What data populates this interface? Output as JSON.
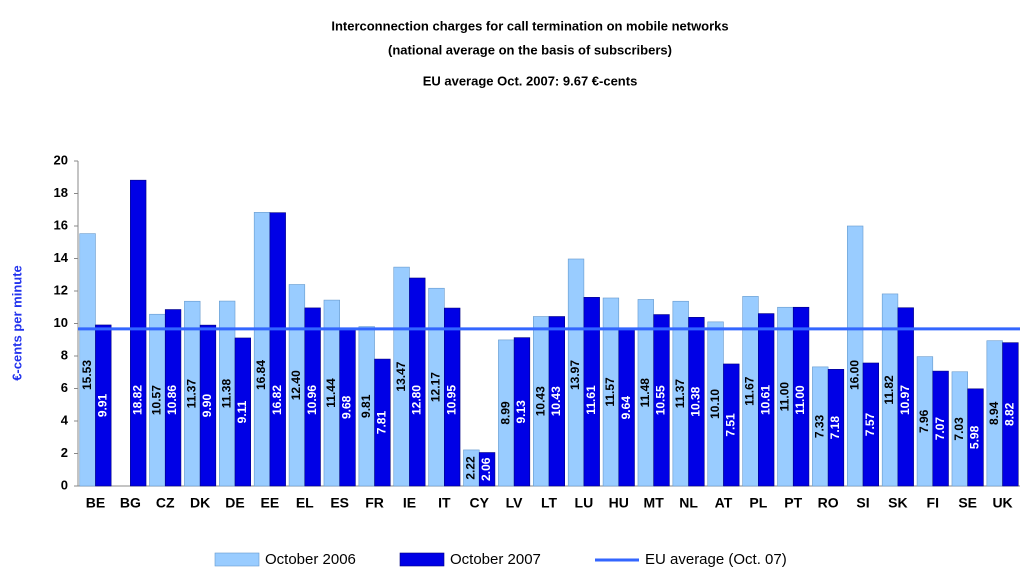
{
  "chart_data": {
    "type": "bar",
    "title": "Interconnection charges for call termination on mobile networks",
    "subtitle": "(national average on the basis of subscribers)",
    "annotation": "EU average Oct. 2007: 9.67 €-cents",
    "y_label": "€-cents per minute",
    "categories": [
      "BE",
      "BG",
      "CZ",
      "DK",
      "DE",
      "EE",
      "EL",
      "ES",
      "FR",
      "IE",
      "IT",
      "CY",
      "LV",
      "LT",
      "LU",
      "HU",
      "MT",
      "NL",
      "AT",
      "PL",
      "PT",
      "RO",
      "SI",
      "SK",
      "FI",
      "SE",
      "UK"
    ],
    "series": [
      {
        "name": "October 2006",
        "color": "#99ccff",
        "values": [
          15.53,
          null,
          10.57,
          11.37,
          11.38,
          16.84,
          12.4,
          11.44,
          9.81,
          13.47,
          12.17,
          2.22,
          8.99,
          10.43,
          13.97,
          11.57,
          11.48,
          11.37,
          10.1,
          11.67,
          11.0,
          7.33,
          16.0,
          11.82,
          7.96,
          7.03,
          8.94
        ],
        "value_labels": [
          "15.53",
          null,
          "10.57",
          "11.37",
          "11.38",
          "16.84",
          "12.40",
          "11.44",
          "9.81",
          "13.47",
          "12.17",
          "2.22",
          "8.99",
          "10.43",
          "13.97",
          "11.57",
          "11.48",
          "11.37",
          "10.10",
          "11.67",
          "11.00",
          "7.33",
          "16.00",
          "11.82",
          "7.96",
          "7.03",
          "8.94"
        ]
      },
      {
        "name": "October 2007",
        "color": "#0000e6",
        "values": [
          9.91,
          18.82,
          10.86,
          9.9,
          9.11,
          16.82,
          10.96,
          9.68,
          7.81,
          12.8,
          10.95,
          2.06,
          9.13,
          10.43,
          11.61,
          9.64,
          10.55,
          10.38,
          7.51,
          10.61,
          11.0,
          7.18,
          7.57,
          10.97,
          7.07,
          5.98,
          8.82
        ],
        "value_labels": [
          "9.91",
          "18.82",
          "10.86",
          "9.90",
          "9.11",
          "16.82",
          "10.96",
          "9.68",
          "7.81",
          "12.80",
          "10.95",
          "2.06",
          "9.13",
          "10.43",
          "11.61",
          "9.64",
          "10.55",
          "10.38",
          "7.51",
          "10.61",
          "11.00",
          "7.18",
          "7.57",
          "10.97",
          "7.07",
          "5.98",
          "8.82"
        ]
      }
    ],
    "average": {
      "name": "EU average (Oct. 07)",
      "color": "#3366ff",
      "value": 9.67
    },
    "ylim": [
      0,
      20
    ],
    "yticks": [
      0,
      2,
      4,
      6,
      8,
      10,
      12,
      14,
      16,
      18,
      20
    ]
  }
}
